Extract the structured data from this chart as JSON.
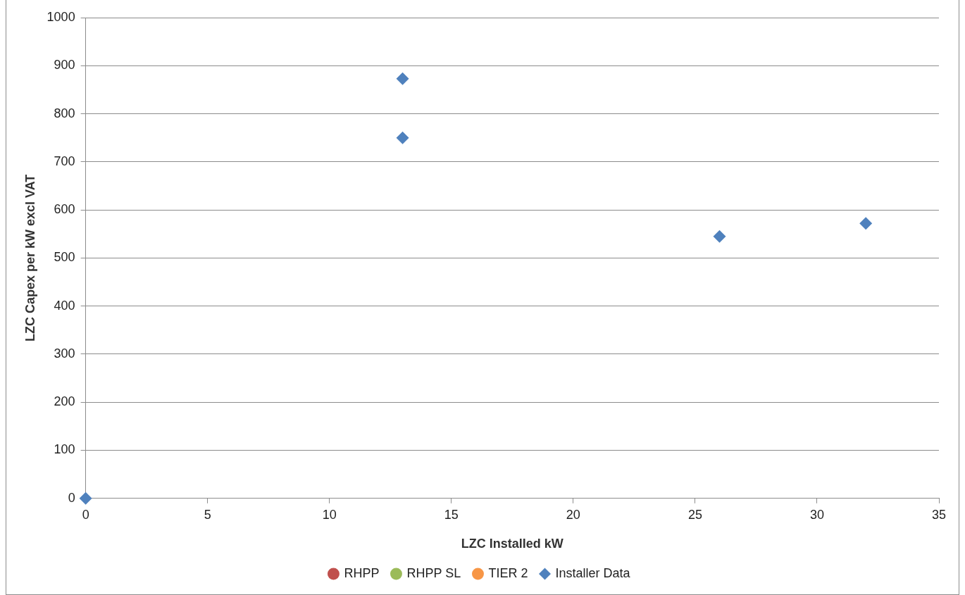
{
  "chart_data": {
    "type": "scatter",
    "xlabel": "LZC Installed kW",
    "ylabel": "LZC Capex per kW excl VAT",
    "xlim": [
      0,
      35
    ],
    "xticks": [
      0,
      5,
      10,
      15,
      20,
      25,
      30,
      35
    ],
    "ylim": [
      0,
      1000
    ],
    "yticks": [
      0,
      100,
      200,
      300,
      400,
      500,
      600,
      700,
      800,
      900,
      1000
    ],
    "grid": "y",
    "legend": "bottom",
    "series": [
      {
        "name": "RHPP",
        "color": "#c0504d",
        "marker": "circle"
      },
      {
        "name": "RHPP SL",
        "color": "#9bbb59",
        "marker": "circle"
      },
      {
        "name": "TIER 2",
        "color": "#f79646",
        "marker": "circle"
      },
      {
        "name": "Installer Data",
        "color": "#4f81bd",
        "marker": "diamond",
        "x": [
          0,
          13,
          13,
          26,
          32
        ],
        "values": [
          0,
          873,
          750,
          545,
          572
        ]
      }
    ]
  }
}
